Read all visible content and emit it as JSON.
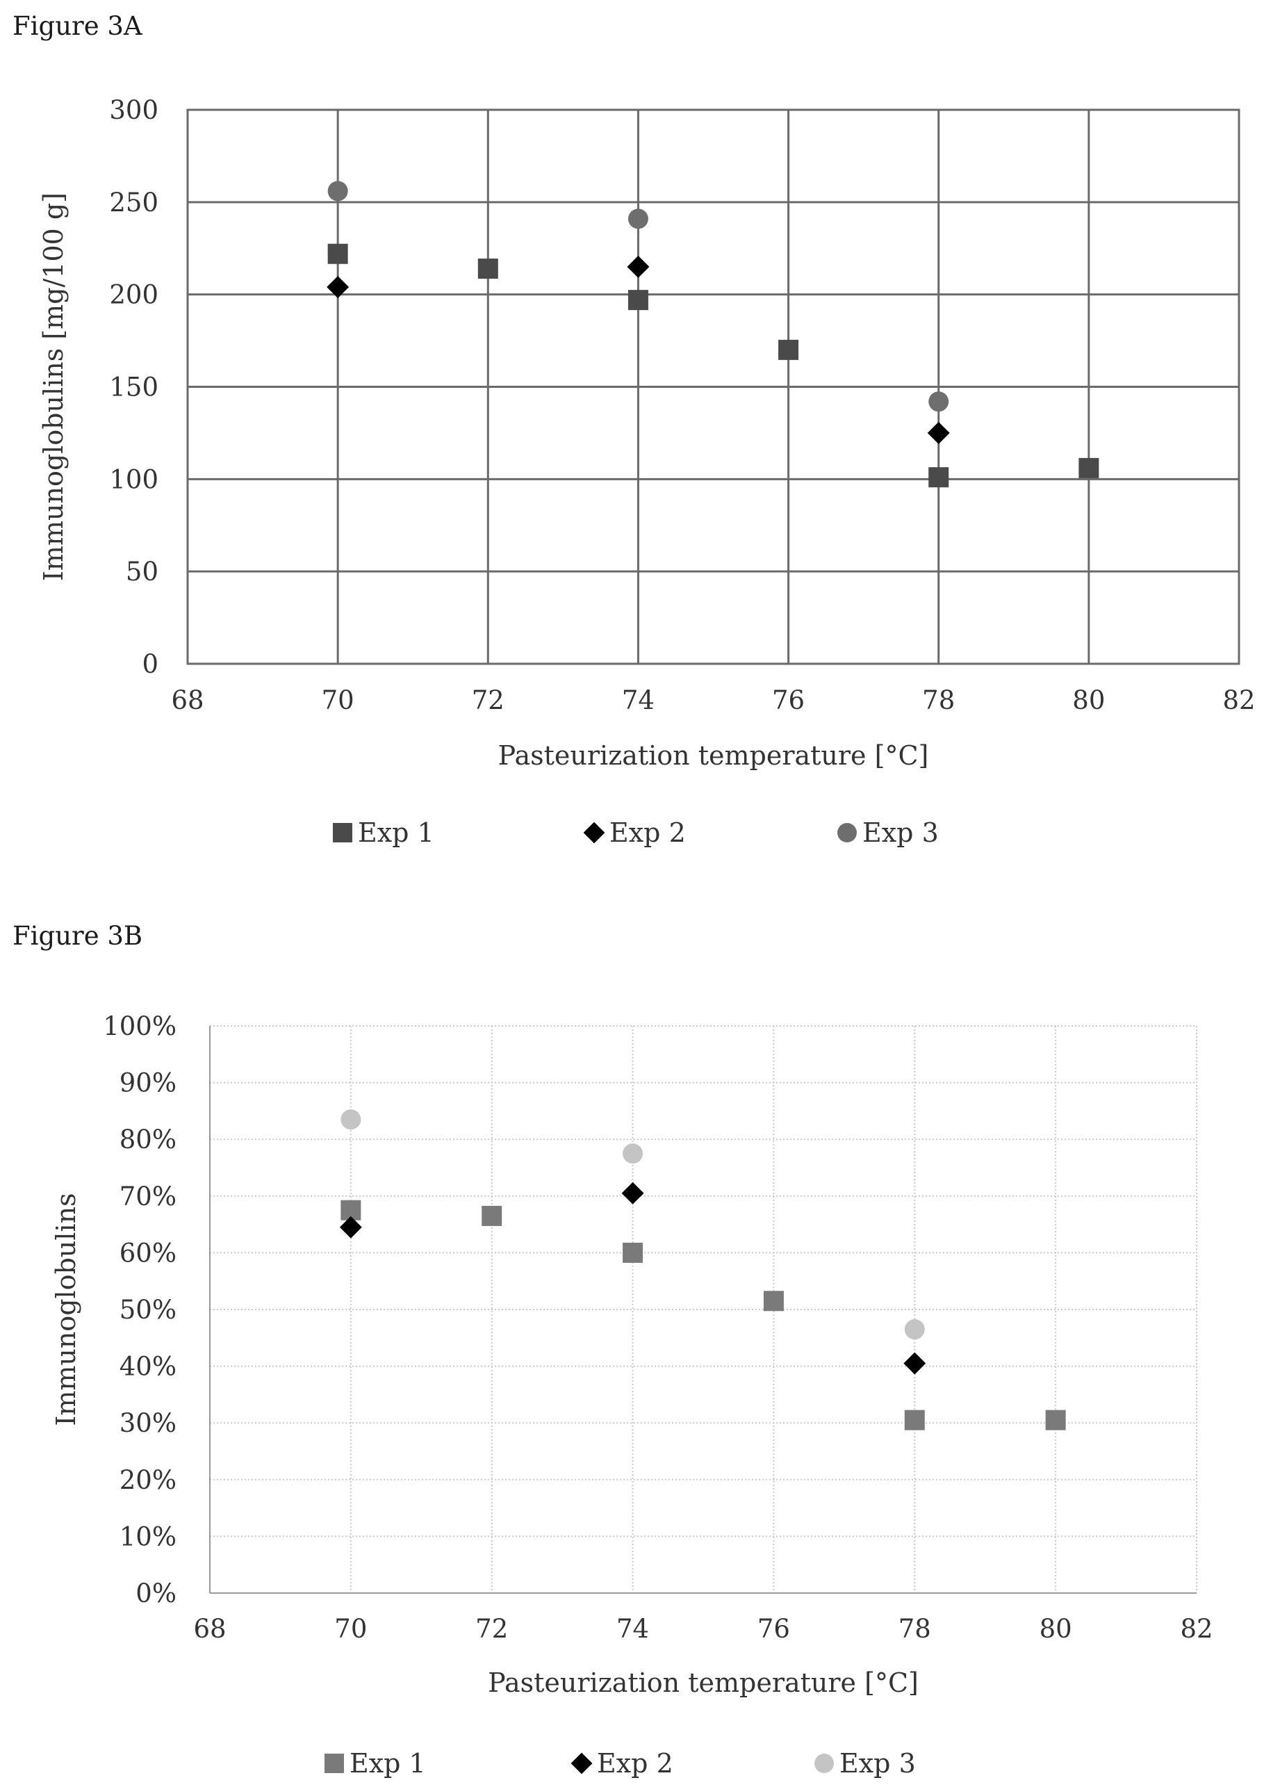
{
  "figure_a_label": "Figure 3A",
  "figure_b_label": "Figure 3B",
  "chart_data": [
    {
      "type": "scatter",
      "title": "",
      "xlabel": "Pasteurization temperature [°C]",
      "ylabel": "Immunoglobulins [mg/100 g]",
      "xlim": [
        68,
        82
      ],
      "ylim": [
        0,
        300
      ],
      "xticks": [
        68,
        70,
        72,
        74,
        76,
        78,
        80,
        82
      ],
      "yticks": [
        0,
        50,
        100,
        150,
        200,
        250,
        300
      ],
      "ytick_labels": [
        "0",
        "50",
        "100",
        "150",
        "200",
        "250",
        "300"
      ],
      "grid": "on",
      "legend_position": "bottom",
      "series": [
        {
          "name": "Exp 1",
          "marker": "square",
          "color": "#4a4a4a",
          "points": [
            [
              70,
              222
            ],
            [
              72,
              214
            ],
            [
              74,
              197
            ],
            [
              76,
              170
            ],
            [
              78,
              101
            ],
            [
              80,
              106
            ]
          ]
        },
        {
          "name": "Exp 2",
          "marker": "diamond",
          "color": "#000000",
          "points": [
            [
              70,
              204
            ],
            [
              74,
              215
            ],
            [
              78,
              125
            ]
          ]
        },
        {
          "name": "Exp 3",
          "marker": "circle",
          "color": "#6e6e6e",
          "points": [
            [
              70,
              256
            ],
            [
              74,
              241
            ],
            [
              78,
              142
            ]
          ]
        }
      ]
    },
    {
      "type": "scatter",
      "title": "",
      "xlabel": "Pasteurization temperature [°C]",
      "ylabel": "Immunoglobulins",
      "xlim": [
        68,
        82
      ],
      "ylim": [
        0,
        100
      ],
      "xticks": [
        68,
        70,
        72,
        74,
        76,
        78,
        80,
        82
      ],
      "yticks": [
        0,
        10,
        20,
        30,
        40,
        50,
        60,
        70,
        80,
        90,
        100
      ],
      "ytick_labels": [
        "0%",
        "10%",
        "20%",
        "30%",
        "40%",
        "50%",
        "60%",
        "70%",
        "80%",
        "90%",
        "100%"
      ],
      "grid": "on (dotted)",
      "legend_position": "bottom",
      "series": [
        {
          "name": "Exp 1",
          "marker": "square",
          "color": "#7a7a7a",
          "points": [
            [
              70,
              67.5
            ],
            [
              72,
              66.5
            ],
            [
              74,
              60
            ],
            [
              76,
              51.5
            ],
            [
              78,
              30.5
            ],
            [
              80,
              30.5
            ]
          ]
        },
        {
          "name": "Exp 2",
          "marker": "diamond",
          "color": "#000000",
          "points": [
            [
              70,
              64.5
            ],
            [
              74,
              70.5
            ],
            [
              78,
              40.5
            ]
          ]
        },
        {
          "name": "Exp 3",
          "marker": "circle",
          "color": "#c4c4c4",
          "points": [
            [
              70,
              83.5
            ],
            [
              74,
              77.5
            ],
            [
              78,
              46.5
            ]
          ]
        }
      ]
    }
  ]
}
